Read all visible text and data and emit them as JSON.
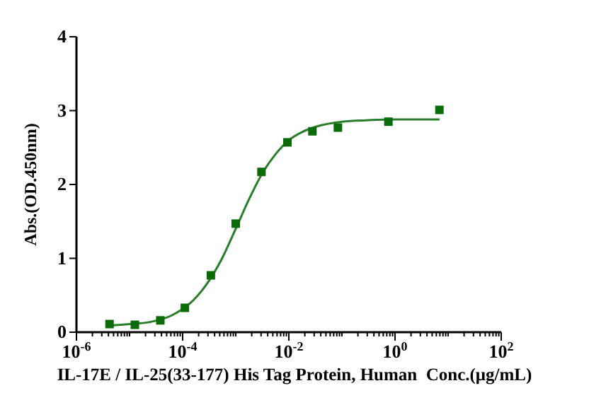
{
  "chart_data": {
    "type": "scatter",
    "xlabel": "IL-17E / IL-25(33-177) His Tag Protein, Human  Conc.(μg/mL)",
    "ylabel": "Abs.(OD.450nm)",
    "log": "x",
    "xlim": [
      1e-06,
      100
    ],
    "ylim": [
      0,
      4
    ],
    "yticks": [
      0,
      1,
      2,
      3,
      4
    ],
    "xticks": [
      {
        "value": 1e-06,
        "label": "10$^{-6}$"
      },
      {
        "value": 2e-06,
        "label": null
      },
      {
        "value": 3e-06,
        "label": null
      },
      {
        "value": 4e-06,
        "label": null
      },
      {
        "value": 5e-06,
        "label": null
      },
      {
        "value": 6e-06,
        "label": null
      },
      {
        "value": 7e-06,
        "label": null
      },
      {
        "value": 8e-06,
        "label": null
      },
      {
        "value": 9e-06,
        "label": null
      },
      {
        "value": 1e-05,
        "label": null
      },
      {
        "value": 2e-05,
        "label": null
      },
      {
        "value": 3e-05,
        "label": null
      },
      {
        "value": 4e-05,
        "label": null
      },
      {
        "value": 5e-05,
        "label": null
      },
      {
        "value": 6e-05,
        "label": null
      },
      {
        "value": 7e-05,
        "label": null
      },
      {
        "value": 8e-05,
        "label": null
      },
      {
        "value": 9e-05,
        "label": null
      },
      {
        "value": 0.0001,
        "label": "10$^{-4}$"
      },
      {
        "value": 0.0002,
        "label": null
      },
      {
        "value": 0.0003,
        "label": null
      },
      {
        "value": 0.0004,
        "label": null
      },
      {
        "value": 0.0005,
        "label": null
      },
      {
        "value": 0.0006,
        "label": null
      },
      {
        "value": 0.0007,
        "label": null
      },
      {
        "value": 0.0008,
        "label": null
      },
      {
        "value": 0.0009,
        "label": null
      },
      {
        "value": 0.001,
        "label": null
      },
      {
        "value": 0.002,
        "label": null
      },
      {
        "value": 0.003,
        "label": null
      },
      {
        "value": 0.004,
        "label": null
      },
      {
        "value": 0.005,
        "label": null
      },
      {
        "value": 0.006,
        "label": null
      },
      {
        "value": 0.007,
        "label": null
      },
      {
        "value": 0.008,
        "label": null
      },
      {
        "value": 0.009,
        "label": null
      },
      {
        "value": 0.01,
        "label": "10$^{-2}$"
      },
      {
        "value": 0.02,
        "label": null
      },
      {
        "value": 0.03,
        "label": null
      },
      {
        "value": 0.04,
        "label": null
      },
      {
        "value": 0.05,
        "label": null
      },
      {
        "value": 0.06,
        "label": null
      },
      {
        "value": 0.07,
        "label": null
      },
      {
        "value": 0.08,
        "label": null
      },
      {
        "value": 0.09,
        "label": null
      },
      {
        "value": 0.1,
        "label": null
      },
      {
        "value": 0.2,
        "label": null
      },
      {
        "value": 0.3,
        "label": null
      },
      {
        "value": 0.4,
        "label": null
      },
      {
        "value": 0.5,
        "label": null
      },
      {
        "value": 0.6,
        "label": null
      },
      {
        "value": 0.7,
        "label": null
      },
      {
        "value": 0.8,
        "label": null
      },
      {
        "value": 0.9,
        "label": null
      },
      {
        "value": 1,
        "label": "10$^{0}$"
      },
      {
        "value": 2,
        "label": null
      },
      {
        "value": 3,
        "label": null
      },
      {
        "value": 4,
        "label": null
      },
      {
        "value": 5,
        "label": null
      },
      {
        "value": 6,
        "label": null
      },
      {
        "value": 7,
        "label": null
      },
      {
        "value": 8,
        "label": null
      },
      {
        "value": 9,
        "label": null
      },
      {
        "value": 10,
        "label": null
      },
      {
        "value": 20,
        "label": null
      },
      {
        "value": 30,
        "label": null
      },
      {
        "value": 40,
        "label": null
      },
      {
        "value": 50,
        "label": null
      },
      {
        "value": 60,
        "label": null
      },
      {
        "value": 70,
        "label": null
      },
      {
        "value": 80,
        "label": null
      },
      {
        "value": 90,
        "label": null
      },
      {
        "value": 100,
        "label": "10$^{2}$"
      }
    ],
    "grid": false,
    "series": [
      {
        "marker": "square",
        "color": "#0b6b0b",
        "x": [
          4.2e-06,
          1.26e-05,
          3.8e-05,
          0.00011,
          0.00034,
          0.001,
          0.00305,
          0.0094,
          0.0278,
          0.084,
          0.75,
          6.86
        ],
        "values": [
          0.11,
          0.1,
          0.16,
          0.33,
          0.77,
          1.47,
          2.17,
          2.57,
          2.72,
          2.77,
          2.85,
          3.01
        ]
      },
      {
        "type": "line",
        "marker": "none",
        "line_style": "solid",
        "color": "#2a7d2a",
        "x": [
          4e-06,
          1e-05,
          2.51e-05,
          6.31e-05,
          0.000158,
          0.000316,
          0.000562,
          0.001,
          0.00178,
          0.00316,
          0.00562,
          0.01,
          0.0178,
          0.0316,
          0.1,
          0.316,
          1,
          6.9
        ],
        "values": [
          0.09,
          0.11,
          0.14,
          0.23,
          0.43,
          0.7,
          1.01,
          1.4,
          1.8,
          2.15,
          2.41,
          2.6,
          2.71,
          2.78,
          2.85,
          2.87,
          2.88,
          2.88
        ]
      }
    ]
  }
}
